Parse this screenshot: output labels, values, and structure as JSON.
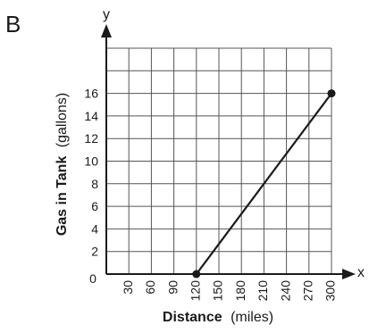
{
  "panel_label": "B",
  "chart_data": {
    "type": "line",
    "title": "",
    "xlabel": {
      "bold": "Distance",
      "normal": "(miles)"
    },
    "ylabel": {
      "bold": "Gas in Tank",
      "normal": "(gallons)"
    },
    "x_axis_letter": "x",
    "y_axis_letter": "y",
    "origin_label": "0",
    "xlim": [
      0,
      300
    ],
    "ylim": [
      0,
      20
    ],
    "x_ticks": [
      30,
      60,
      90,
      120,
      150,
      180,
      210,
      240,
      270,
      300
    ],
    "x_tick_labels": [
      "30",
      "60",
      "90",
      "120",
      "150",
      "180",
      "210",
      "240",
      "270",
      "300"
    ],
    "y_ticks": [
      2,
      4,
      6,
      8,
      10,
      12,
      14,
      16
    ],
    "y_tick_labels": [
      "2",
      "4",
      "6",
      "8",
      "10",
      "12",
      "14",
      "16"
    ],
    "x_grid": [
      30,
      60,
      90,
      120,
      150,
      180,
      210,
      240,
      270,
      300
    ],
    "y_grid": [
      2,
      4,
      6,
      8,
      10,
      12,
      14,
      16,
      18,
      20
    ],
    "grid": true,
    "series": [
      {
        "points": [
          {
            "x": 120,
            "y": 0
          },
          {
            "x": 300,
            "y": 16
          }
        ],
        "endpoint_markers": true,
        "color": "#1a1a1a"
      }
    ]
  }
}
